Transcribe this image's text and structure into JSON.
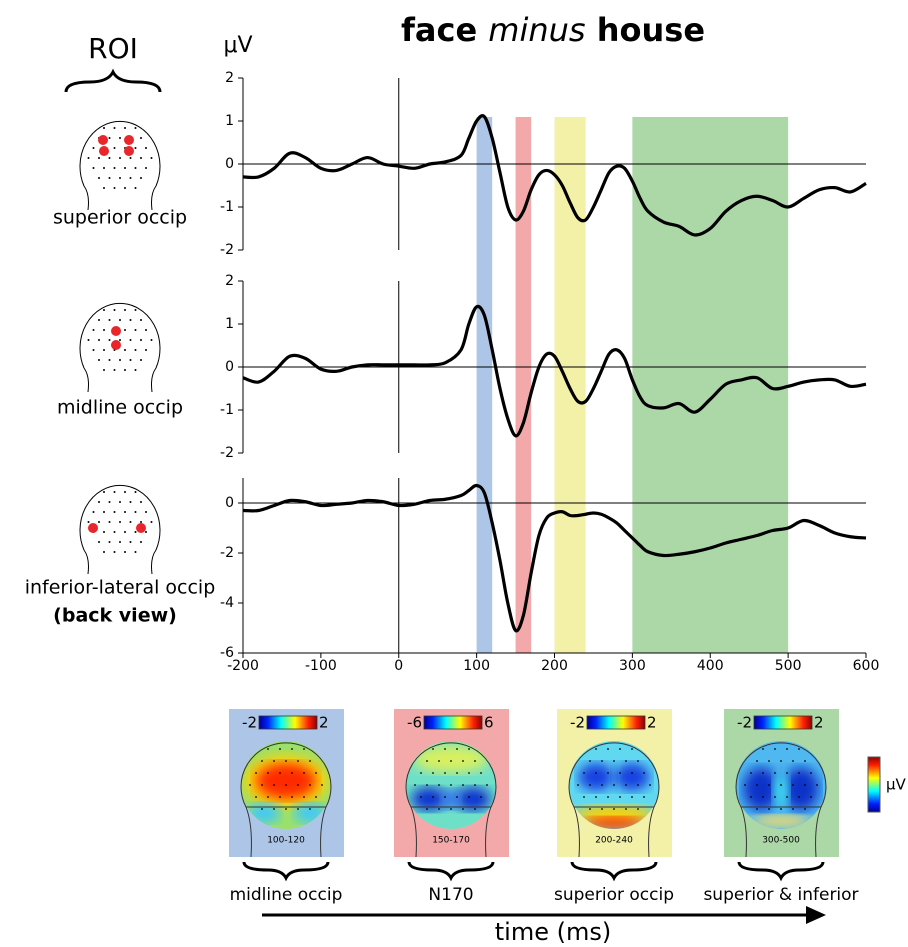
{
  "figure": {
    "title_parts": [
      "face",
      "minus",
      "house"
    ],
    "roi_heading": "ROI",
    "y_unit": "μV",
    "x_label": "time (ms)",
    "colorbar_unit": "μV"
  },
  "chart_data": [
    {
      "type": "line",
      "roi": "superior occip",
      "color": "#000000",
      "x": [
        -200,
        -180,
        -160,
        -140,
        -120,
        -100,
        -80,
        -60,
        -40,
        -20,
        0,
        20,
        40,
        60,
        80,
        90,
        100,
        110,
        120,
        130,
        140,
        150,
        160,
        170,
        180,
        190,
        200,
        210,
        220,
        230,
        240,
        250,
        260,
        270,
        280,
        290,
        300,
        310,
        320,
        340,
        360,
        380,
        400,
        420,
        440,
        460,
        480,
        500,
        520,
        540,
        560,
        580,
        600
      ],
      "values": [
        -0.3,
        -0.3,
        -0.1,
        0.25,
        0.15,
        -0.1,
        -0.15,
        0.0,
        0.15,
        0.0,
        -0.05,
        -0.1,
        0.0,
        0.05,
        0.2,
        0.6,
        1.0,
        1.1,
        0.6,
        -0.2,
        -1.0,
        -1.3,
        -1.1,
        -0.6,
        -0.25,
        -0.15,
        -0.25,
        -0.5,
        -0.9,
        -1.25,
        -1.3,
        -1.0,
        -0.6,
        -0.2,
        -0.05,
        -0.1,
        -0.4,
        -0.8,
        -1.1,
        -1.35,
        -1.45,
        -1.65,
        -1.5,
        -1.1,
        -0.85,
        -0.75,
        -0.85,
        -1.0,
        -0.8,
        -0.6,
        -0.55,
        -0.65,
        -0.45
      ],
      "xlim": [
        -200,
        600
      ],
      "ylim": [
        -2,
        2
      ],
      "yticks": [
        -2,
        -1,
        0,
        1,
        2
      ]
    },
    {
      "type": "line",
      "roi": "midline occip",
      "color": "#000000",
      "x": [
        -200,
        -180,
        -160,
        -140,
        -120,
        -100,
        -80,
        -60,
        -40,
        -20,
        0,
        20,
        40,
        60,
        80,
        90,
        100,
        110,
        120,
        130,
        140,
        150,
        160,
        170,
        180,
        190,
        200,
        210,
        220,
        230,
        240,
        250,
        260,
        270,
        280,
        290,
        300,
        310,
        320,
        340,
        360,
        380,
        400,
        420,
        440,
        460,
        480,
        500,
        520,
        540,
        560,
        580,
        600
      ],
      "values": [
        -0.25,
        -0.35,
        -0.1,
        0.25,
        0.2,
        -0.05,
        -0.1,
        0.0,
        0.05,
        0.05,
        0.05,
        0.05,
        0.05,
        0.1,
        0.4,
        1.0,
        1.4,
        1.2,
        0.4,
        -0.5,
        -1.2,
        -1.6,
        -1.3,
        -0.6,
        0.0,
        0.3,
        0.25,
        -0.1,
        -0.5,
        -0.8,
        -0.8,
        -0.5,
        -0.1,
        0.3,
        0.4,
        0.2,
        -0.3,
        -0.7,
        -0.9,
        -0.95,
        -0.85,
        -1.05,
        -0.75,
        -0.4,
        -0.3,
        -0.25,
        -0.5,
        -0.45,
        -0.35,
        -0.3,
        -0.3,
        -0.45,
        -0.4
      ],
      "xlim": [
        -200,
        600
      ],
      "ylim": [
        -2,
        2
      ],
      "yticks": [
        -2,
        -1,
        0,
        1,
        2
      ]
    },
    {
      "type": "line",
      "roi": "inferior-lateral occip",
      "roi_note": "(back view)",
      "color": "#000000",
      "x": [
        -200,
        -180,
        -160,
        -140,
        -120,
        -100,
        -80,
        -60,
        -40,
        -20,
        0,
        20,
        40,
        60,
        80,
        90,
        100,
        110,
        120,
        130,
        140,
        150,
        160,
        170,
        180,
        190,
        200,
        210,
        220,
        230,
        240,
        250,
        260,
        270,
        280,
        290,
        300,
        310,
        320,
        340,
        360,
        380,
        400,
        420,
        440,
        460,
        480,
        500,
        520,
        540,
        560,
        580,
        600
      ],
      "values": [
        -0.3,
        -0.3,
        -0.1,
        0.1,
        0.05,
        -0.1,
        -0.05,
        0.0,
        0.1,
        0.05,
        -0.1,
        -0.05,
        0.1,
        0.15,
        0.3,
        0.5,
        0.7,
        0.4,
        -0.8,
        -2.3,
        -4.0,
        -5.1,
        -4.5,
        -2.8,
        -1.3,
        -0.6,
        -0.4,
        -0.35,
        -0.5,
        -0.5,
        -0.45,
        -0.4,
        -0.45,
        -0.6,
        -0.8,
        -1.1,
        -1.4,
        -1.7,
        -1.95,
        -2.1,
        -2.05,
        -1.95,
        -1.8,
        -1.6,
        -1.45,
        -1.3,
        -1.1,
        -1.0,
        -0.7,
        -0.9,
        -1.2,
        -1.35,
        -1.4
      ],
      "xlim": [
        -200,
        600
      ],
      "ylim": [
        -6,
        1
      ],
      "yticks": [
        -6,
        -4,
        -2,
        0
      ],
      "xticks": [
        -200,
        -100,
        0,
        100,
        200,
        300,
        400,
        500,
        600
      ]
    }
  ],
  "windows": [
    {
      "x_range": [
        100,
        120
      ],
      "color": "#adc6e8",
      "label": "100-120",
      "scale": [
        -2,
        2
      ],
      "caption": "midline occip"
    },
    {
      "x_range": [
        150,
        170
      ],
      "color": "#f3a9a9",
      "label": "150-170",
      "scale": [
        -6,
        6
      ],
      "caption": "N170"
    },
    {
      "x_range": [
        200,
        240
      ],
      "color": "#f3f0a8",
      "label": "200-240",
      "scale": [
        -2,
        2
      ],
      "caption": "superior occip"
    },
    {
      "x_range": [
        300,
        500
      ],
      "color": "#acd8a8",
      "label": "300-500",
      "scale": [
        -2,
        2
      ],
      "caption": "superior & inferior"
    }
  ]
}
